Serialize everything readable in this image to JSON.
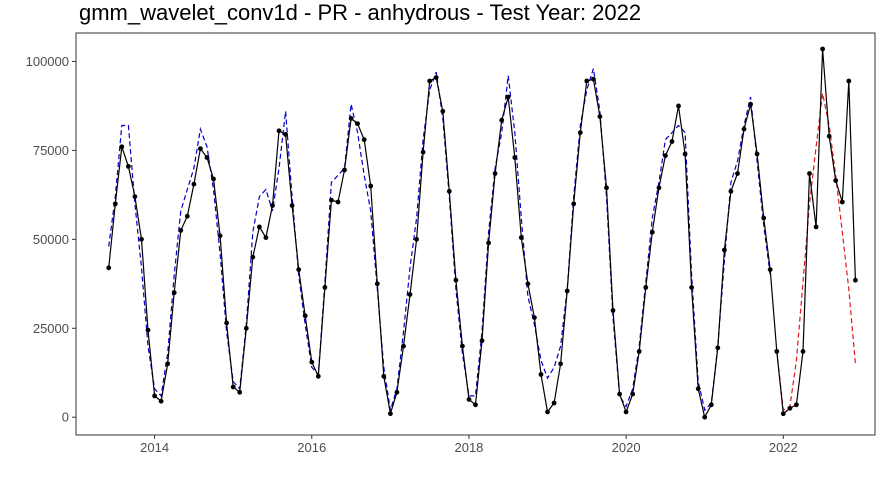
{
  "chart_data": {
    "type": "line",
    "title": "gmm_wavelet_conv1d - PR - anhydrous - Test Year: 2022",
    "xlabel": "",
    "ylabel": "",
    "grid": false,
    "x_ticks": [
      "2014",
      "2016",
      "2018",
      "2020",
      "2022"
    ],
    "y_ticks": [
      "0",
      "25000",
      "50000",
      "75000",
      "100000"
    ],
    "xlim": [
      "2013-01",
      "2023-03"
    ],
    "ylim": [
      -5000,
      108000
    ],
    "x_months": [
      "2013-06",
      "2013-07",
      "2013-08",
      "2013-09",
      "2013-10",
      "2013-11",
      "2013-12",
      "2014-01",
      "2014-02",
      "2014-03",
      "2014-04",
      "2014-05",
      "2014-06",
      "2014-07",
      "2014-08",
      "2014-09",
      "2014-10",
      "2014-11",
      "2014-12",
      "2015-01",
      "2015-02",
      "2015-03",
      "2015-04",
      "2015-05",
      "2015-06",
      "2015-07",
      "2015-08",
      "2015-09",
      "2015-10",
      "2015-11",
      "2015-12",
      "2016-01",
      "2016-02",
      "2016-03",
      "2016-04",
      "2016-05",
      "2016-06",
      "2016-07",
      "2016-08",
      "2016-09",
      "2016-10",
      "2016-11",
      "2016-12",
      "2017-01",
      "2017-02",
      "2017-03",
      "2017-04",
      "2017-05",
      "2017-06",
      "2017-07",
      "2017-08",
      "2017-09",
      "2017-10",
      "2017-11",
      "2017-12",
      "2018-01",
      "2018-02",
      "2018-03",
      "2018-04",
      "2018-05",
      "2018-06",
      "2018-07",
      "2018-08",
      "2018-09",
      "2018-10",
      "2018-11",
      "2018-12",
      "2019-01",
      "2019-02",
      "2019-03",
      "2019-04",
      "2019-05",
      "2019-06",
      "2019-07",
      "2019-08",
      "2019-09",
      "2019-10",
      "2019-11",
      "2019-12",
      "2020-01",
      "2020-02",
      "2020-03",
      "2020-04",
      "2020-05",
      "2020-06",
      "2020-07",
      "2020-08",
      "2020-09",
      "2020-10",
      "2020-11",
      "2020-12",
      "2021-01",
      "2021-02",
      "2021-03",
      "2021-04",
      "2021-05",
      "2021-06",
      "2021-07",
      "2021-08",
      "2021-09",
      "2021-10",
      "2021-11",
      "2021-12",
      "2022-01",
      "2022-02",
      "2022-03",
      "2022-04",
      "2022-05",
      "2022-06",
      "2022-07",
      "2022-08",
      "2022-09",
      "2022-10",
      "2022-11",
      "2022-12"
    ],
    "series": [
      {
        "style": "solid-with-points",
        "color": "#000000",
        "values": [
          42000,
          60000,
          76000,
          70500,
          62000,
          50000,
          24500,
          6000,
          4500,
          15000,
          35000,
          52500,
          56500,
          65500,
          75500,
          73000,
          67000,
          51000,
          26500,
          8500,
          7000,
          25000,
          45000,
          53500,
          50500,
          59500,
          80500,
          79500,
          59500,
          41500,
          28500,
          15500,
          11500,
          36500,
          61000,
          60500,
          69500,
          84000,
          82500,
          78000,
          65000,
          37500,
          11500,
          1000,
          7000,
          20000,
          34500,
          50000,
          74500,
          94500,
          95500,
          86000,
          63500,
          38500,
          20000,
          5000,
          3500,
          21500,
          49000,
          68500,
          83500,
          90000,
          73000,
          50500,
          37500,
          28000,
          12000,
          1500,
          4000,
          15000,
          35500,
          60000,
          80000,
          94500,
          95000,
          84500,
          64500,
          30000,
          6500,
          1500,
          6500,
          18500,
          36500,
          52000,
          64500,
          73500,
          77500,
          87500,
          74000,
          36500,
          8000,
          0,
          3500,
          19500,
          47000,
          63500,
          68500,
          81000,
          88000,
          74000,
          56000,
          41500,
          18500,
          1000,
          2500,
          3500,
          18500,
          68500,
          53500,
          103500,
          79000,
          66500,
          60500,
          94500,
          38500
        ]
      },
      {
        "style": "dashed",
        "color": "#0000cc",
        "values": [
          48000,
          62000,
          82000,
          82000,
          60000,
          42000,
          20000,
          8000,
          6000,
          18000,
          40000,
          58000,
          64000,
          70000,
          81000,
          76000,
          64000,
          46000,
          24000,
          10000,
          8000,
          26000,
          52000,
          62000,
          64000,
          58000,
          70000,
          86000,
          62000,
          40000,
          26000,
          14000,
          12000,
          38000,
          66000,
          68000,
          70000,
          88000,
          80000,
          68000,
          58000,
          36000,
          14000,
          2000,
          8000,
          24000,
          42000,
          56000,
          78000,
          92000,
          97000,
          84000,
          62000,
          36000,
          18000,
          6000,
          6000,
          24000,
          52000,
          70000,
          80000,
          96000,
          80000,
          56000,
          34000,
          26000,
          16000,
          11000,
          14000,
          20000,
          36000,
          62000,
          82000,
          92000,
          98000,
          86000,
          62000,
          28000,
          6000,
          3000,
          8000,
          20000,
          38000,
          56000,
          66000,
          78000,
          80000,
          82000,
          80000,
          40000,
          10000,
          2000,
          4000,
          20000,
          44000,
          66000,
          72000,
          82000,
          90000,
          72000,
          54000,
          40000
        ]
      },
      {
        "style": "dashed",
        "color": "#e41a1c",
        "values": [
          null,
          null,
          null,
          null,
          null,
          null,
          null,
          null,
          null,
          null,
          null,
          null,
          null,
          null,
          null,
          null,
          null,
          null,
          null,
          null,
          null,
          null,
          null,
          null,
          null,
          null,
          null,
          null,
          null,
          null,
          null,
          null,
          null,
          null,
          null,
          null,
          null,
          null,
          null,
          null,
          null,
          null,
          null,
          null,
          null,
          null,
          null,
          null,
          null,
          null,
          null,
          null,
          null,
          null,
          null,
          null,
          null,
          null,
          null,
          null,
          null,
          null,
          null,
          null,
          null,
          null,
          null,
          null,
          null,
          null,
          null,
          null,
          null,
          null,
          null,
          null,
          null,
          null,
          null,
          null,
          null,
          null,
          null,
          null,
          null,
          null,
          null,
          null,
          null,
          null,
          null,
          null,
          null,
          null,
          null,
          null,
          null,
          null,
          null,
          null,
          null,
          null,
          18500,
          2000,
          3000,
          16000,
          38000,
          60000,
          76000,
          91000,
          82000,
          68000,
          52000,
          36000,
          15000
        ]
      }
    ]
  }
}
